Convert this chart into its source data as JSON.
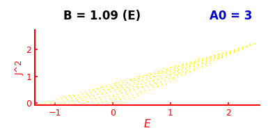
{
  "title_left": "B = 1.09 (E)",
  "title_right": "A0 = 3",
  "xlabel": "E",
  "ylabel": "J^2",
  "xlim": [
    -1.35,
    2.55
  ],
  "ylim": [
    -0.08,
    2.75
  ],
  "xticks": [
    -1,
    0,
    1,
    2
  ],
  "yticks": [
    0,
    1,
    2
  ],
  "dot_color": "#ffff00",
  "axes_color": "#ff0000",
  "title_left_color": "#000000",
  "title_right_color": "#0000cc",
  "background_color": "#ffffff",
  "n_lines": 18,
  "seed": 42
}
